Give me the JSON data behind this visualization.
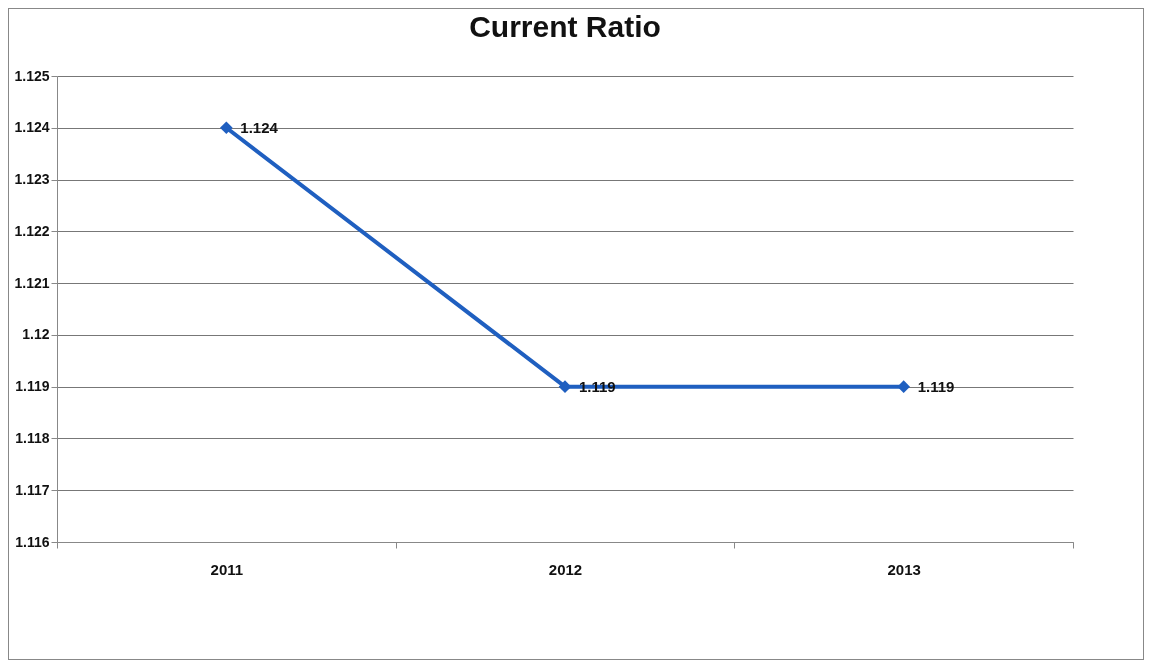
{
  "chart_data": {
    "type": "line",
    "title": "Current Ratio",
    "categories": [
      "2011",
      "2012",
      "2013"
    ],
    "series": [
      {
        "color": "#1f5fc0",
        "values": [
          1.124,
          1.119,
          1.119
        ]
      }
    ],
    "ylim": [
      1.116,
      1.125
    ],
    "yticks": [
      1.116,
      1.117,
      1.118,
      1.119,
      1.12,
      1.121,
      1.122,
      1.123,
      1.124,
      1.125
    ],
    "grid": "y",
    "marker": "diamond",
    "line_style": "solid",
    "data_labels": true
  }
}
